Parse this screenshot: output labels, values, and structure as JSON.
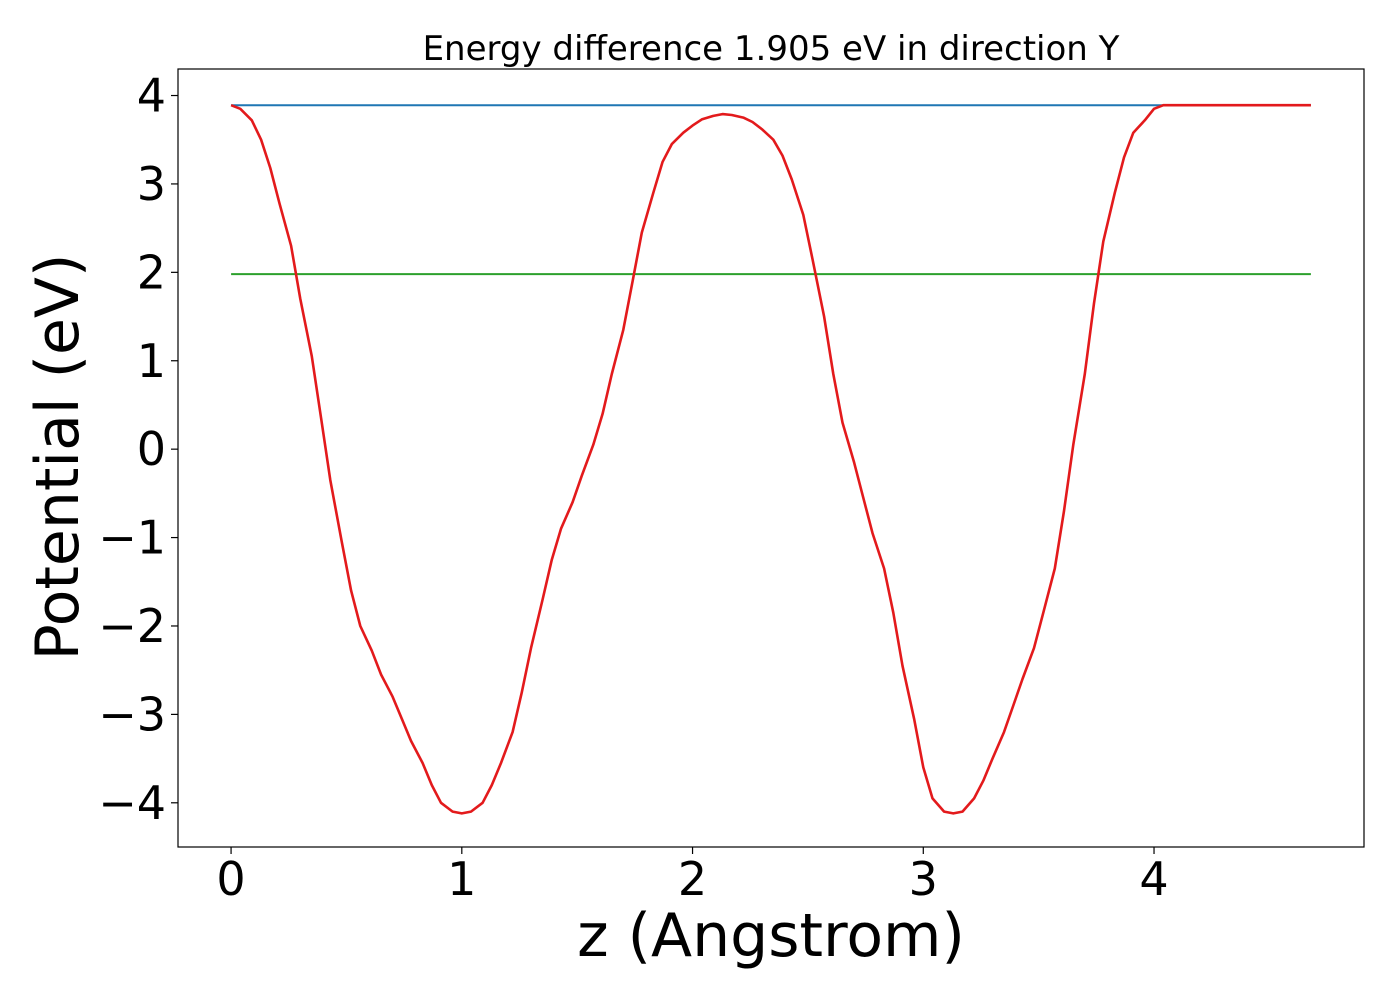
{
  "chart_data": {
    "type": "line",
    "title": "Energy difference 1.905 eV in direction Y",
    "xlabel": "z (Angstrom)",
    "ylabel": "Potential (eV)",
    "xlim": [
      -0.23,
      4.91
    ],
    "ylim": [
      -4.5,
      4.3
    ],
    "xticks": [
      0,
      1,
      2,
      3,
      4
    ],
    "yticks": [
      -4,
      -3,
      -2,
      -1,
      0,
      1,
      2,
      3,
      4
    ],
    "xtick_labels": [
      "0",
      "1",
      "2",
      "3",
      "4"
    ],
    "ytick_labels": [
      "−4",
      "−3",
      "−2",
      "−1",
      "0",
      "1",
      "2",
      "3",
      "4"
    ],
    "grid": false,
    "series": [
      {
        "color": "#1f77b4",
        "x": [
          0,
          4.68
        ],
        "y": [
          3.89,
          3.89
        ]
      },
      {
        "color": "#2ca02c",
        "x": [
          0,
          4.68
        ],
        "y": [
          1.98,
          1.98
        ]
      },
      {
        "color": "#e31a1c",
        "x": [
          0,
          0.04,
          0.09,
          0.13,
          0.17,
          0.21,
          0.26,
          0.3,
          0.35,
          0.39,
          0.43,
          0.48,
          0.52,
          0.56,
          0.61,
          0.65,
          0.7,
          0.74,
          0.78,
          0.83,
          0.87,
          0.91,
          0.96,
          1.0,
          1.04,
          1.09,
          1.13,
          1.17,
          1.22,
          1.26,
          1.3,
          1.35,
          1.39,
          1.43,
          1.48,
          1.52,
          1.57,
          1.61,
          1.65,
          1.7,
          1.74,
          1.78,
          1.83,
          1.87,
          1.91,
          1.96,
          2.0,
          2.04,
          2.09,
          2.13,
          2.17,
          2.22,
          2.26,
          2.3,
          2.35,
          2.39,
          2.43,
          2.48,
          2.52,
          2.57,
          2.61,
          2.65,
          2.7,
          2.74,
          2.78,
          2.83,
          2.87,
          2.91,
          2.96,
          3.0,
          3.04,
          3.09,
          3.13,
          3.17,
          3.22,
          3.26,
          3.3,
          3.35,
          3.39,
          3.43,
          3.48,
          3.52,
          3.57,
          3.61,
          3.65,
          3.7,
          3.74,
          3.78,
          3.83,
          3.87,
          3.91,
          3.96,
          4.0,
          4.04,
          4.09,
          4.13,
          4.17,
          4.22,
          4.26,
          4.3,
          4.35,
          4.39,
          4.43,
          4.48,
          4.52,
          4.57,
          4.61,
          4.65,
          4.68
        ],
        "y": [
          3.89,
          3.85,
          3.72,
          3.5,
          3.18,
          2.78,
          2.3,
          1.7,
          1.05,
          0.35,
          -0.35,
          -1.05,
          -1.6,
          -2.0,
          -2.28,
          -2.55,
          -2.8,
          -3.05,
          -3.3,
          -3.55,
          -3.8,
          -4.0,
          -4.1,
          -4.12,
          -4.1,
          -4.0,
          -3.8,
          -3.55,
          -3.2,
          -2.75,
          -2.25,
          -1.7,
          -1.25,
          -0.9,
          -0.6,
          -0.3,
          0.05,
          0.4,
          0.85,
          1.35,
          1.9,
          2.45,
          2.9,
          3.25,
          3.45,
          3.58,
          3.66,
          3.73,
          3.77,
          3.79,
          3.78,
          3.75,
          3.7,
          3.62,
          3.5,
          3.32,
          3.05,
          2.65,
          2.15,
          1.5,
          0.85,
          0.3,
          -0.15,
          -0.55,
          -0.95,
          -1.35,
          -1.85,
          -2.45,
          -3.05,
          -3.6,
          -3.95,
          -4.1,
          -4.12,
          -4.1,
          -3.95,
          -3.75,
          -3.5,
          -3.2,
          -2.9,
          -2.6,
          -2.25,
          -1.85,
          -1.35,
          -0.7,
          0.05,
          0.85,
          1.65,
          2.35,
          2.9,
          3.3,
          3.58,
          3.72,
          3.85,
          3.89,
          3.89,
          3.89,
          3.89,
          3.89,
          3.89,
          3.89,
          3.89,
          3.89,
          3.89,
          3.89,
          3.89,
          3.89,
          3.89,
          3.89,
          3.89
        ]
      }
    ]
  }
}
